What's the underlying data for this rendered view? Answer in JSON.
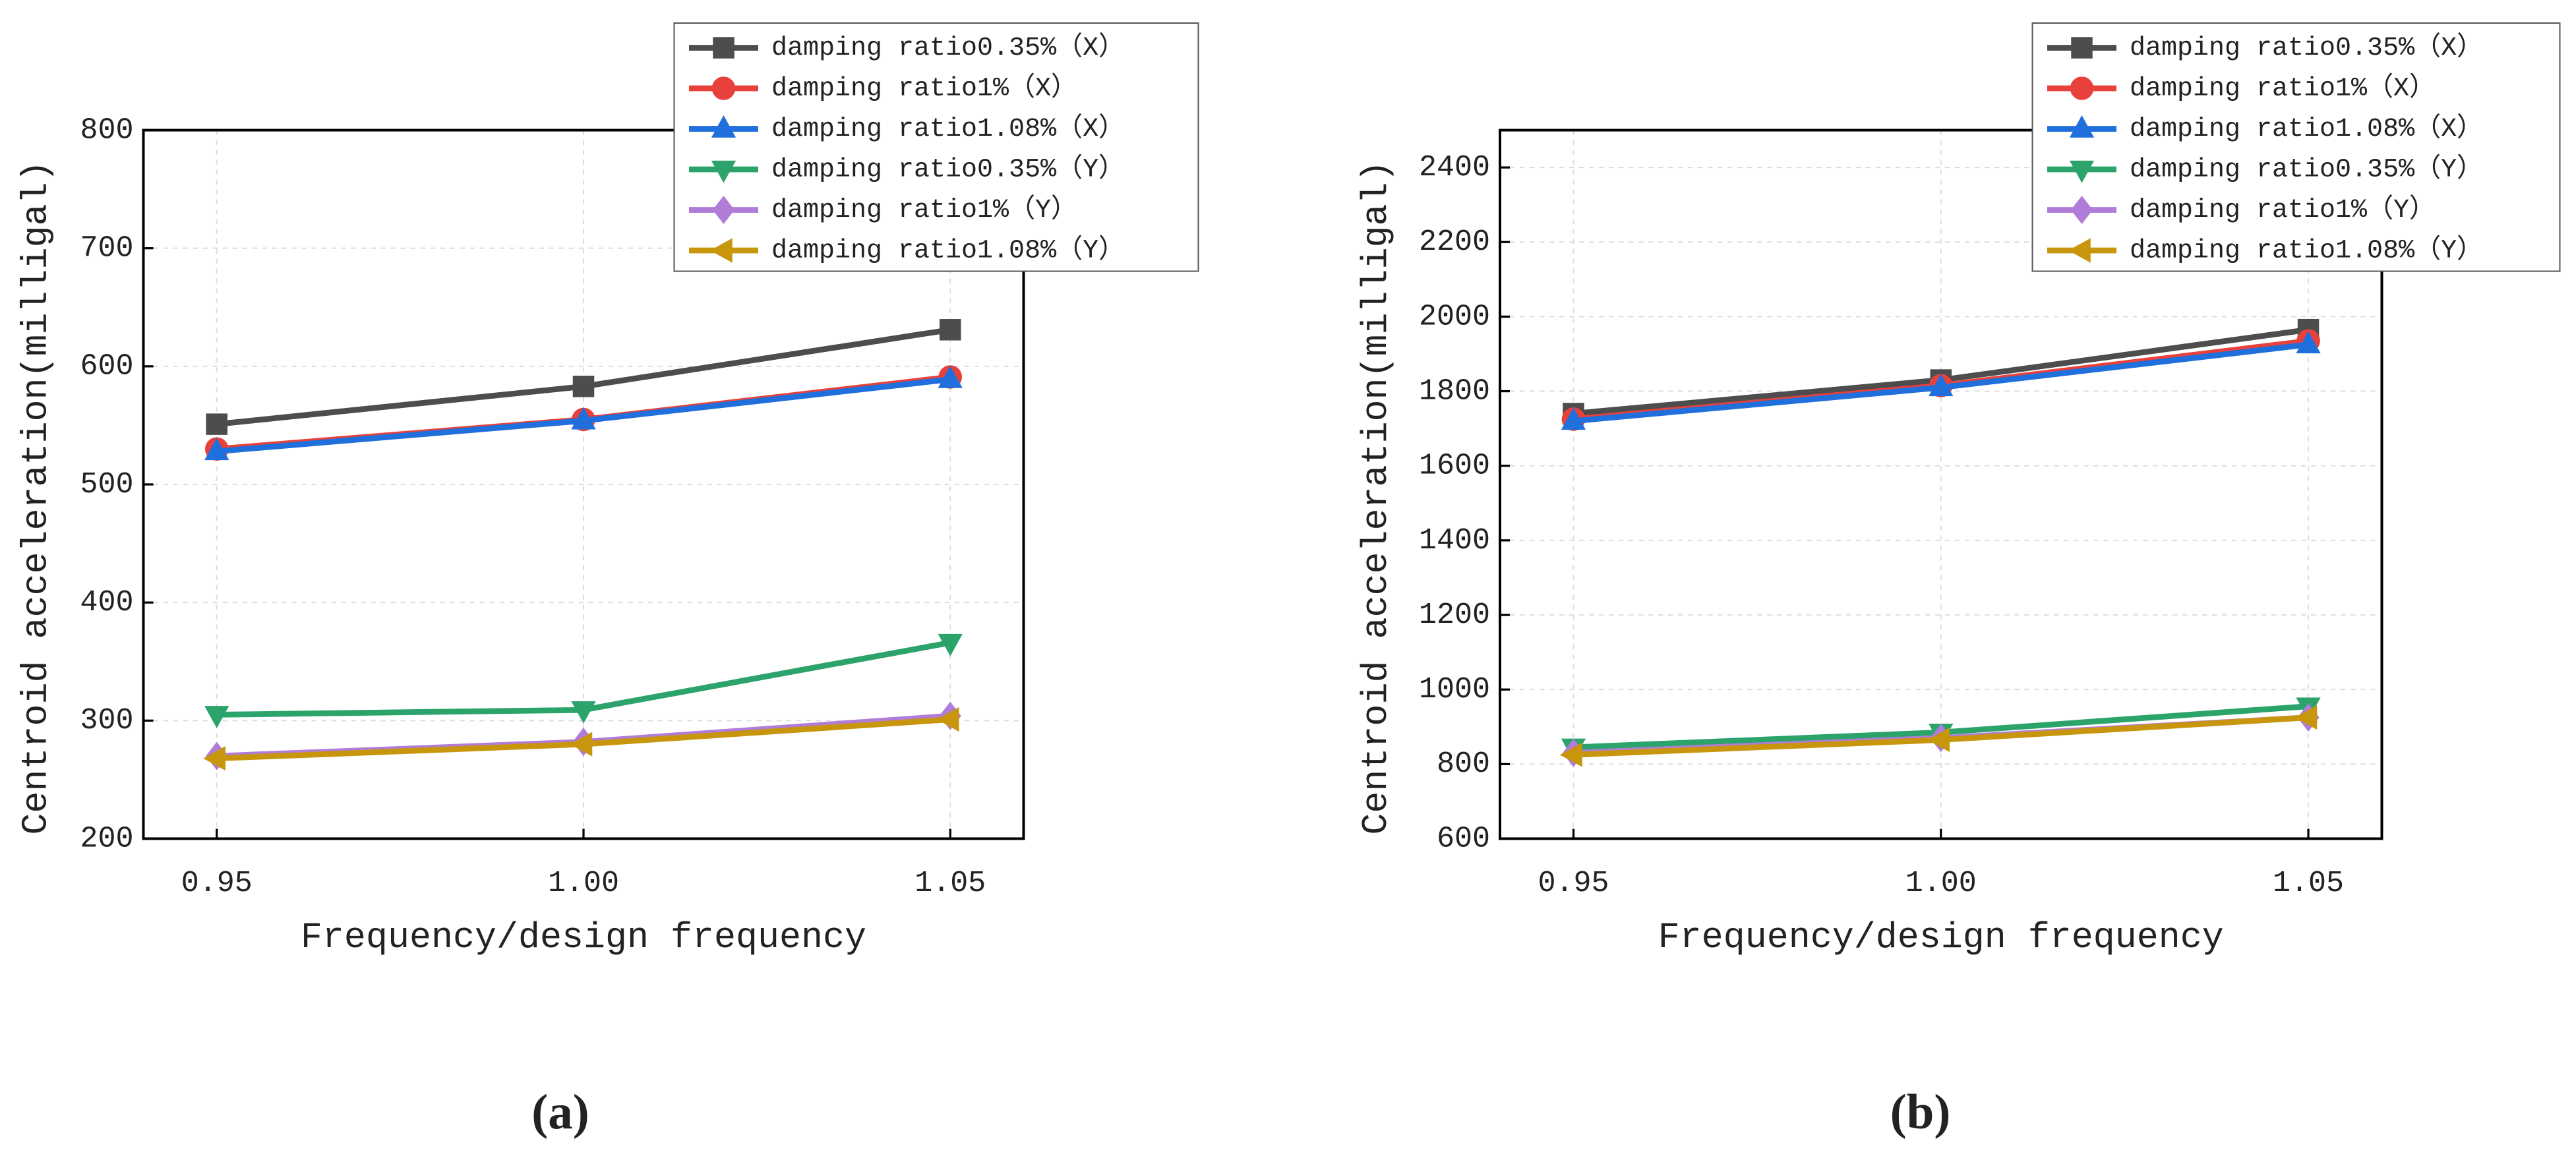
{
  "chart_data": [
    {
      "type": "line",
      "panel_label": "(a)",
      "x_label": "Frequency/design frequency",
      "y_label": "Centroid acceleration(milligal)",
      "x": [
        0.95,
        1.0,
        1.05
      ],
      "xlim": [
        0.94,
        1.06
      ],
      "xticks": [
        {
          "value": 0.95,
          "label": "0.95"
        },
        {
          "value": 1.0,
          "label": "1.00"
        },
        {
          "value": 1.05,
          "label": "1.05"
        }
      ],
      "ylim": [
        200,
        800
      ],
      "yticks": [
        200,
        300,
        400,
        500,
        600,
        700,
        800
      ],
      "grid": true,
      "legend": "upper right",
      "series": [
        {
          "name": "damping ratio0.35%（X）",
          "color": "#4d4d4d",
          "marker": "square",
          "values": [
            551,
            583,
            631
          ]
        },
        {
          "name": "damping ratio1%（X）",
          "color": "#e8413c",
          "marker": "circle",
          "values": [
            530,
            555,
            591
          ]
        },
        {
          "name": "damping ratio1.08%（X）",
          "color": "#1f6fdc",
          "marker": "triangle-up",
          "values": [
            528,
            554,
            589
          ]
        },
        {
          "name": "damping ratio0.35%（Y）",
          "color": "#2ca36b",
          "marker": "triangle-down",
          "values": [
            305,
            309,
            366
          ]
        },
        {
          "name": "damping ratio1%（Y）",
          "color": "#b07cd8",
          "marker": "diamond",
          "values": [
            270,
            282,
            304
          ]
        },
        {
          "name": "damping ratio1.08%（Y）",
          "color": "#c8960c",
          "marker": "triangle-left",
          "values": [
            268,
            280,
            301
          ]
        }
      ]
    },
    {
      "type": "line",
      "panel_label": "(b)",
      "x_label": "Frequency/design frequency",
      "y_label": "Centroid acceleration(milligal)",
      "x": [
        0.95,
        1.0,
        1.05
      ],
      "xlim": [
        0.94,
        1.06
      ],
      "xticks": [
        {
          "value": 0.95,
          "label": "0.95"
        },
        {
          "value": 1.0,
          "label": "1.00"
        },
        {
          "value": 1.05,
          "label": "1.05"
        }
      ],
      "ylim": [
        600,
        2500
      ],
      "yticks": [
        600,
        800,
        1000,
        1200,
        1400,
        1600,
        1800,
        2000,
        2200,
        2400
      ],
      "grid": true,
      "legend": "upper right",
      "series": [
        {
          "name": "damping ratio0.35%（X）",
          "color": "#4d4d4d",
          "marker": "square",
          "values": [
            1740,
            1830,
            1965
          ]
        },
        {
          "name": "damping ratio1%（X）",
          "color": "#e8413c",
          "marker": "circle",
          "values": [
            1725,
            1815,
            1935
          ]
        },
        {
          "name": "damping ratio1.08%（X）",
          "color": "#1f6fdc",
          "marker": "triangle-up",
          "values": [
            1720,
            1810,
            1925
          ]
        },
        {
          "name": "damping ratio0.35%（Y）",
          "color": "#2ca36b",
          "marker": "triangle-down",
          "values": [
            845,
            885,
            955
          ]
        },
        {
          "name": "damping ratio1%（Y）",
          "color": "#b07cd8",
          "marker": "diamond",
          "values": [
            830,
            870,
            925
          ]
        },
        {
          "name": "damping ratio1.08%（Y）",
          "color": "#c8960c",
          "marker": "triangle-left",
          "values": [
            825,
            865,
            925
          ]
        }
      ]
    }
  ]
}
